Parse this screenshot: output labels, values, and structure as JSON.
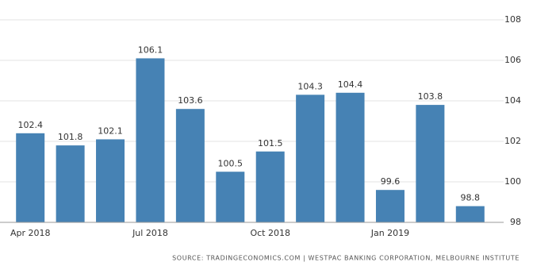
{
  "chart_data": {
    "type": "bar",
    "categories": [
      "Apr 2018",
      null,
      null,
      "Jul 2018",
      null,
      null,
      "Oct 2018",
      null,
      null,
      "Jan 2019",
      null,
      null
    ],
    "values": [
      102.4,
      101.8,
      102.1,
      106.1,
      103.6,
      100.5,
      101.5,
      104.3,
      104.4,
      99.6,
      103.8,
      98.8
    ],
    "color": "#4682b4",
    "ylim": [
      98,
      108
    ],
    "yticks": [
      98,
      100,
      102,
      104,
      106,
      108
    ],
    "grid": true,
    "source": "SOURCE: TRADINGECONOMICS.COM | WESTPAC BANKING CORPORATION, MELBOURNE INSTITUTE"
  }
}
